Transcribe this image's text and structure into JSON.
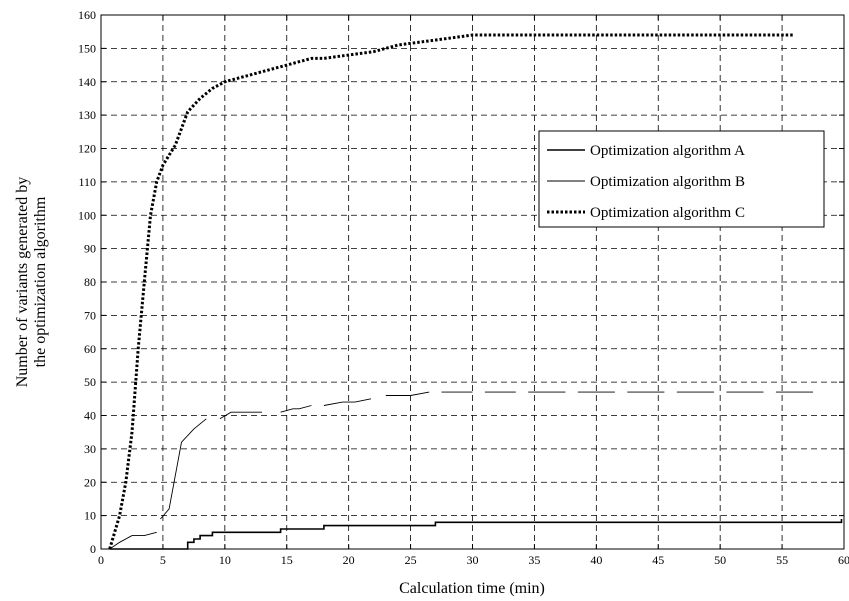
{
  "chart_data": {
    "type": "line",
    "title": "",
    "xlabel": "Calculation time (min)",
    "ylabel_lines": [
      "Number of variants generated by",
      "the optimization algorithm"
    ],
    "xlim": [
      0,
      60
    ],
    "ylim": [
      0,
      160
    ],
    "xticks": [
      0,
      5,
      10,
      15,
      20,
      25,
      30,
      35,
      40,
      45,
      50,
      55,
      60
    ],
    "yticks": [
      0,
      10,
      20,
      30,
      40,
      50,
      60,
      70,
      80,
      90,
      100,
      110,
      120,
      130,
      140,
      150,
      160
    ],
    "grid": true,
    "legend_position": "upper-right",
    "series": [
      {
        "name": "Optimization algorithm A",
        "line_style": "solid",
        "color": "#000000",
        "x": [
          0.7,
          6.5,
          7.0,
          7.5,
          8.0,
          8.5,
          9.0,
          14.5,
          18.0,
          27.0,
          59.5,
          59.8
        ],
        "y": [
          0,
          0,
          2,
          3,
          4,
          4,
          5,
          6,
          7,
          8,
          8,
          9
        ]
      },
      {
        "name": "Optimization algorithm B",
        "line_style": "thin with gaps",
        "color": "#000000",
        "segments": [
          {
            "x": [
              0.7,
              1.5,
              2.5,
              3.5,
              4.5
            ],
            "y": [
              0,
              2,
              4,
              4,
              5
            ]
          },
          {
            "x": [
              4.8,
              5.5,
              6.5,
              7.5,
              8.5
            ],
            "y": [
              9,
              12,
              32,
              36,
              39
            ]
          },
          {
            "x": [
              9.6,
              10.5,
              11.5,
              13.0
            ],
            "y": [
              39,
              41,
              41,
              41
            ]
          },
          {
            "x": [
              14.5,
              15.5,
              16.0,
              17.0
            ],
            "y": [
              41,
              42,
              42,
              43
            ]
          },
          {
            "x": [
              18.0,
              19.5,
              20.5,
              21.8
            ],
            "y": [
              43,
              44,
              44,
              45
            ]
          },
          {
            "x": [
              23.0,
              25.0,
              26.5
            ],
            "y": [
              46,
              46,
              47
            ]
          },
          {
            "x": [
              27.5,
              30.0
            ],
            "y": [
              47,
              47
            ]
          },
          {
            "x": [
              31.0,
              33.5
            ],
            "y": [
              47,
              47
            ]
          },
          {
            "x": [
              34.5,
              37.5
            ],
            "y": [
              47,
              47
            ]
          },
          {
            "x": [
              38.5,
              41.5
            ],
            "y": [
              47,
              47
            ]
          },
          {
            "x": [
              42.5,
              45.5
            ],
            "y": [
              47,
              47
            ]
          },
          {
            "x": [
              46.5,
              49.5
            ],
            "y": [
              47,
              47
            ]
          },
          {
            "x": [
              50.5,
              53.5
            ],
            "y": [
              47,
              47
            ]
          },
          {
            "x": [
              54.5,
              57.5
            ],
            "y": [
              47,
              47
            ]
          }
        ]
      },
      {
        "name": "Optimization algorithm C",
        "line_style": "dotted",
        "color": "#000000",
        "x": [
          0.7,
          1.5,
          2.0,
          2.5,
          3.0,
          3.5,
          4.0,
          4.5,
          5.0,
          5.5,
          6.0,
          7.0,
          8.0,
          9.0,
          10.0,
          11.0,
          12.0,
          13.0,
          14.0,
          15.0,
          16.0,
          17.0,
          18.0,
          20.0,
          22.0,
          24.0,
          26.0,
          28.0,
          30.0,
          32.0,
          40.0,
          50.0,
          56.0
        ],
        "y": [
          0,
          10,
          20,
          35,
          60,
          80,
          100,
          110,
          115,
          118,
          121,
          131,
          135,
          138,
          140,
          141,
          142,
          143,
          144,
          145,
          146,
          147,
          147,
          148,
          149,
          151,
          152,
          153,
          154,
          154,
          154,
          154,
          154
        ]
      }
    ]
  }
}
